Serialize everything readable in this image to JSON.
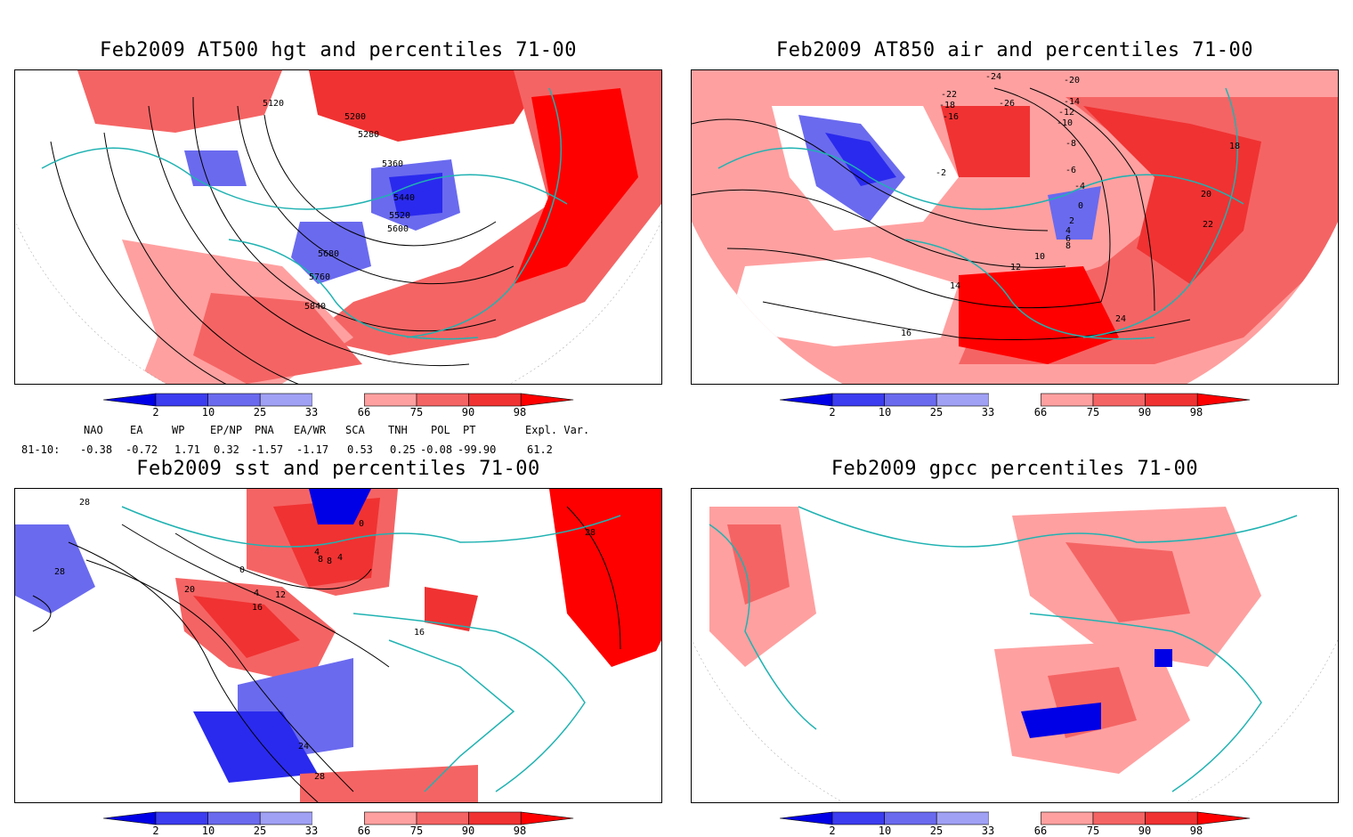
{
  "panels": [
    {
      "id": "p1",
      "title": "Feb2009 AT500 hgt and percentiles 71-00",
      "contour_labels": [
        "5120",
        "5200",
        "5280",
        "5360",
        "5440",
        "5520",
        "5600",
        "5680",
        "5760",
        "5840"
      ]
    },
    {
      "id": "p2",
      "title": "Feb2009 AT850 air and percentiles 71-00",
      "contour_labels": [
        "-24",
        "-20",
        "-16",
        "-14",
        "-12",
        "-10",
        "-8",
        "-6",
        "-4",
        "-2",
        "0",
        "2",
        "4",
        "6",
        "8",
        "10",
        "12",
        "14",
        "16",
        "18",
        "20",
        "22",
        "24",
        "-22",
        "-18",
        "-26"
      ]
    },
    {
      "id": "p3",
      "title": "Feb2009 sst and percentiles 71-00",
      "contour_labels": [
        "28",
        "28",
        "20",
        "0",
        "4",
        "8",
        "12",
        "16",
        "24",
        "28",
        "28",
        "16",
        "0",
        "4",
        "8",
        "4"
      ]
    },
    {
      "id": "p4",
      "title": "Feb2009 gpcc percentiles 71-00",
      "contour_labels": []
    }
  ],
  "colorbar": {
    "ticks": [
      "2",
      "10",
      "25",
      "33",
      "66",
      "75",
      "90",
      "98"
    ],
    "colors": [
      "#0000e6",
      "#3c3cf0",
      "#6a6aef",
      "#a0a0f5",
      "#ffffff",
      "#ffa0a0",
      "#f56464",
      "#f03232",
      "#ff0000"
    ]
  },
  "indices": {
    "headers": [
      "NAO",
      "EA",
      "WP",
      "EP/NP",
      "PNA",
      "EA/WR",
      "SCA",
      "TNH",
      "POL",
      "PT",
      "Expl. Var."
    ],
    "row_label": "81-10:",
    "values": [
      "-0.38",
      "-0.72",
      "1.71",
      "0.32",
      "-1.57",
      "-1.17",
      "0.53",
      "0.25",
      "-0.08",
      "-99.90",
      "61.2"
    ]
  },
  "colors": {
    "coast": "#20b2b2",
    "red1": "#ffa0a0",
    "red2": "#f56464",
    "red3": "#f03232",
    "blue1": "#a0a0f5",
    "blue2": "#6a6aef",
    "blue3": "#2a2aee"
  }
}
